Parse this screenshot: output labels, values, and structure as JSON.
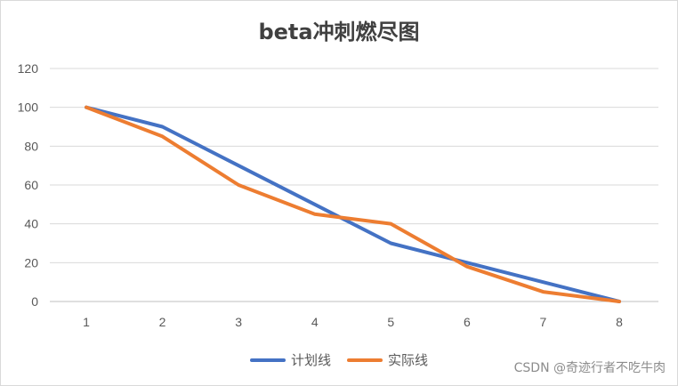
{
  "chart_data": {
    "type": "line",
    "title": "beta冲刺燃尽图",
    "x": [
      1,
      2,
      3,
      4,
      5,
      6,
      7,
      8
    ],
    "x_tick_labels": [
      "1",
      "2",
      "3",
      "4",
      "5",
      "6",
      "7",
      "8"
    ],
    "ylim": [
      0,
      120
    ],
    "y_ticks": [
      0,
      20,
      40,
      60,
      80,
      100,
      120
    ],
    "y_tick_labels": [
      "0",
      "20",
      "40",
      "60",
      "80",
      "100",
      "120"
    ],
    "grid": true,
    "legend_position": "bottom",
    "series": [
      {
        "name": "计划线",
        "color": "#4472C4",
        "values": [
          100,
          90,
          70,
          50,
          30,
          20,
          10,
          0
        ]
      },
      {
        "name": "实际线",
        "color": "#ED7D31",
        "values": [
          100,
          85,
          60,
          45,
          40,
          18,
          5,
          0
        ]
      }
    ]
  },
  "watermark": "CSDN @奇迹行者不吃牛肉"
}
